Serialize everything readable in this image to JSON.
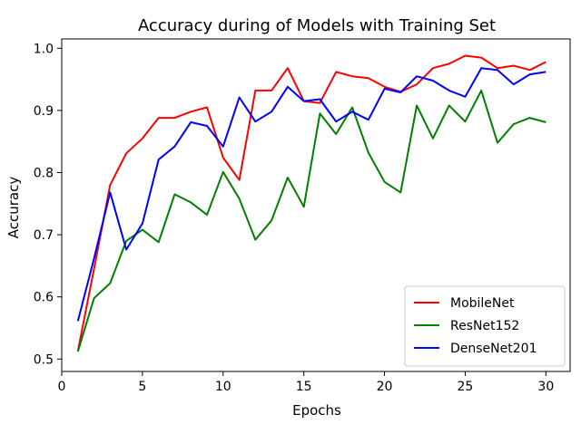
{
  "chart_data": {
    "type": "line",
    "title": "Accuracy during of Models with Training Set",
    "xlabel": "Epochs",
    "ylabel": "Accuracy",
    "x": [
      1,
      2,
      3,
      4,
      5,
      6,
      7,
      8,
      9,
      10,
      11,
      12,
      13,
      14,
      15,
      16,
      17,
      18,
      19,
      20,
      21,
      22,
      23,
      24,
      25,
      26,
      27,
      28,
      29,
      30
    ],
    "xlim": [
      0,
      31.5
    ],
    "ylim": [
      0.48,
      1.015
    ],
    "xticks": [
      0,
      5,
      10,
      15,
      20,
      25,
      30
    ],
    "yticks": [
      0.5,
      0.6,
      0.7,
      0.8,
      0.9,
      1.0
    ],
    "xtick_labels": [
      "0",
      "5",
      "10",
      "15",
      "20",
      "25",
      "30"
    ],
    "ytick_labels": [
      "0.5",
      "0.6",
      "0.7",
      "0.8",
      "0.9",
      "1.0"
    ],
    "grid": false,
    "legend_position": "bottom-right",
    "series": [
      {
        "name": "MobileNet",
        "color": "#ff0000",
        "values": [
          0.513,
          0.645,
          0.78,
          0.831,
          0.855,
          0.888,
          0.888,
          0.898,
          0.905,
          0.824,
          0.788,
          0.932,
          0.932,
          0.968,
          0.915,
          0.912,
          0.962,
          0.955,
          0.952,
          0.938,
          0.93,
          0.942,
          0.968,
          0.975,
          0.988,
          0.985,
          0.968,
          0.972,
          0.965,
          0.978
        ]
      },
      {
        "name": "ResNet152",
        "color": "#008000",
        "values": [
          0.512,
          0.598,
          0.622,
          0.69,
          0.708,
          0.688,
          0.765,
          0.752,
          0.732,
          0.801,
          0.758,
          0.692,
          0.723,
          0.792,
          0.745,
          0.895,
          0.862,
          0.905,
          0.832,
          0.785,
          0.768,
          0.908,
          0.855,
          0.908,
          0.882,
          0.932,
          0.848,
          0.878,
          0.888,
          0.881
        ]
      },
      {
        "name": "DenseNet201",
        "color": "#0000ff",
        "values": [
          0.561,
          0.662,
          0.768,
          0.676,
          0.718,
          0.821,
          0.842,
          0.881,
          0.875,
          0.842,
          0.921,
          0.882,
          0.898,
          0.938,
          0.915,
          0.918,
          0.882,
          0.898,
          0.885,
          0.935,
          0.929,
          0.955,
          0.948,
          0.932,
          0.922,
          0.968,
          0.965,
          0.942,
          0.958,
          0.962
        ]
      }
    ]
  }
}
